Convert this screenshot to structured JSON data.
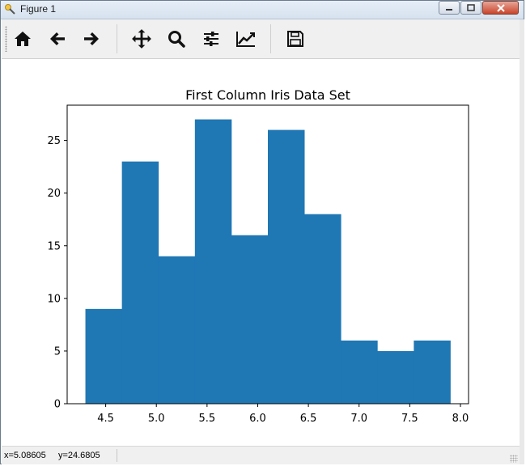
{
  "window": {
    "title": "Figure 1",
    "controls": {
      "minimize_icon": "minimize-icon",
      "maximize_icon": "maximize-icon",
      "close_icon": "close-icon"
    }
  },
  "toolbar": {
    "buttons": [
      {
        "name": "home-button",
        "icon": "home-icon"
      },
      {
        "name": "back-button",
        "icon": "arrow-left-icon"
      },
      {
        "name": "forward-button",
        "icon": "arrow-right-icon"
      },
      {
        "name": "pan-button",
        "icon": "move-icon"
      },
      {
        "name": "zoom-button",
        "icon": "magnifier-icon"
      },
      {
        "name": "configure-subplots-button",
        "icon": "sliders-icon"
      },
      {
        "name": "edit-axis-button",
        "icon": "line-chart-icon"
      },
      {
        "name": "save-button",
        "icon": "floppy-disk-icon"
      }
    ]
  },
  "chart_data": {
    "type": "bar",
    "title": "First Column Iris Data Set",
    "xlabel": "",
    "ylabel": "",
    "bin_edges": [
      4.3,
      4.66,
      5.02,
      5.38,
      5.74,
      6.1,
      6.46,
      6.82,
      7.18,
      7.54,
      7.9
    ],
    "values": [
      9,
      23,
      14,
      27,
      16,
      26,
      18,
      6,
      5,
      6
    ],
    "xlim": [
      4.12,
      8.08
    ],
    "ylim": [
      0,
      28.35
    ],
    "xticks": [
      4.5,
      5.0,
      5.5,
      6.0,
      6.5,
      7.0,
      7.5,
      8.0
    ],
    "xtick_labels": [
      "4.5",
      "5.0",
      "5.5",
      "6.0",
      "6.5",
      "7.0",
      "7.5",
      "8.0"
    ],
    "yticks": [
      0,
      5,
      10,
      15,
      20,
      25
    ],
    "ytick_labels": [
      "0",
      "5",
      "10",
      "15",
      "20",
      "25"
    ],
    "bar_color": "#1f77b4",
    "grid": false
  },
  "status": {
    "coordinates": "x=5.08605     y=24.6805"
  }
}
